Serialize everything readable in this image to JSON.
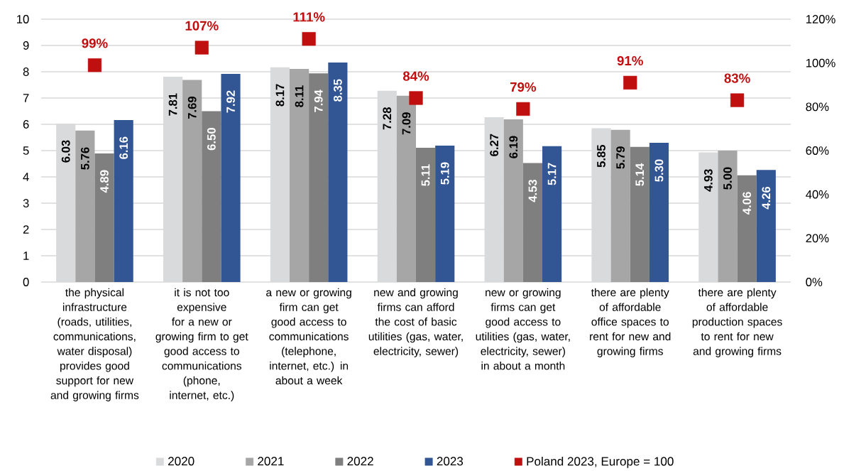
{
  "chart_data": {
    "type": "bar",
    "categories": [
      "the physical infrastructure (roads, utilities, communications, water disposal) provides good support for new and growing firms",
      "it is not too expensive for a new or growing firm to get good access to communications (phone, internet, etc.)",
      "a new or growing firm can get good access to communications (telephone, internet, etc.) in about a week",
      "new and growing firms can afford the cost of basic utilities (gas, water, electricity, sewer)",
      "new or growing firms can get good access to utilities (gas, water, electricity, sewer) in about a month",
      "there are plenty of affordable office spaces to rent for new and growing firms",
      "there are plenty of affordable production spaces to rent for new and growing firms"
    ],
    "series": [
      {
        "name": "2020",
        "color": "#d9dadb",
        "values": [
          6.03,
          7.81,
          8.17,
          7.28,
          6.27,
          5.85,
          4.93
        ],
        "value_labels": [
          "6.03",
          "7.81",
          "8.17",
          "7.28",
          "6.27",
          "5.85",
          "4.93"
        ]
      },
      {
        "name": "2021",
        "color": "#a6a6a6",
        "values": [
          5.76,
          7.69,
          8.11,
          7.09,
          6.19,
          5.79,
          5.0
        ],
        "value_labels": [
          "5.76",
          "7.69",
          "8.11",
          "7.09",
          "6.19",
          "5.79",
          "5.00"
        ]
      },
      {
        "name": "2022",
        "color": "#7f7f7f",
        "values": [
          4.89,
          6.5,
          7.94,
          5.11,
          4.53,
          5.14,
          4.06
        ],
        "value_labels": [
          "4.89",
          "6.50",
          "7.94",
          "5.11",
          "4.53",
          "5.14",
          "4.06"
        ]
      },
      {
        "name": "2023",
        "color": "#325594",
        "values": [
          6.16,
          7.92,
          8.35,
          5.19,
          5.17,
          5.3,
          4.26
        ],
        "value_labels": [
          "6.16",
          "7.92",
          "8.35",
          "5.19",
          "5.17",
          "5.30",
          "4.26"
        ]
      },
      {
        "name": "Poland 2023, Europe = 100",
        "type": "scatter",
        "axis": "y2",
        "marker": "square",
        "color": "#c00f0f",
        "values": [
          99,
          107,
          111,
          84,
          79,
          91,
          83
        ],
        "value_labels": [
          "99%",
          "107%",
          "111%",
          "84%",
          "79%",
          "91%",
          "83%"
        ]
      }
    ],
    "ylim": [
      0,
      10
    ],
    "yticks": [
      0,
      1,
      2,
      3,
      4,
      5,
      6,
      7,
      8,
      9,
      10
    ],
    "y2lim": [
      0,
      120
    ],
    "y2ticks": [
      {
        "value": 0,
        "label": "0%"
      },
      {
        "value": 20,
        "label": "20%"
      },
      {
        "value": 40,
        "label": "40%"
      },
      {
        "value": 60,
        "label": "60%"
      },
      {
        "value": 80,
        "label": "80%"
      },
      {
        "value": 100,
        "label": "100%"
      },
      {
        "value": 120,
        "label": "120%"
      }
    ],
    "grid": "y",
    "legend": "bottom"
  }
}
